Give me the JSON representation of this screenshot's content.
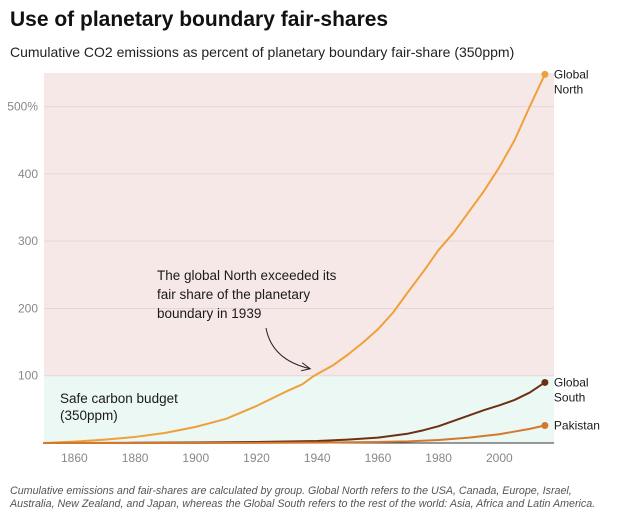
{
  "header": {
    "title": "Use of planetary boundary fair-shares",
    "subtitle": "Cumulative CO2 emissions as percent of planetary boundary fair-share (350ppm)"
  },
  "footnote": "Cumulative emissions and fair-shares are calculated by group. Global North refers to the USA, Canada, Europe, Israel, Australia, New Zealand, and Japan, whereas the Global South refers to the rest of the world: Asia, Africa and Latin America.",
  "chart_data": {
    "type": "line",
    "title": "Use of planetary boundary fair-shares",
    "subtitle": "Cumulative CO2 emissions as percent of planetary boundary fair-share (350ppm)",
    "xlim": [
      1850,
      2018
    ],
    "ylim": [
      0,
      550
    ],
    "x_ticks": [
      1860,
      1880,
      1900,
      1920,
      1940,
      1960,
      1980,
      2000
    ],
    "y_ticks": [
      100,
      200,
      300,
      400,
      500
    ],
    "y_tick_labels": [
      "100",
      "200",
      "300",
      "400",
      "500%"
    ],
    "grid": true,
    "legend": "end-of-line labels",
    "zones": [
      {
        "label": "Safe carbon budget\n(350ppm)",
        "from": 0,
        "to": 100,
        "color": "#ebf8f3"
      },
      {
        "label": "",
        "from": 100,
        "to": 550,
        "color": "#f7e8e8"
      }
    ],
    "series": [
      {
        "name": "Global\nNorth",
        "color": "#f0a03a",
        "x": [
          1850,
          1860,
          1870,
          1880,
          1890,
          1900,
          1910,
          1920,
          1930,
          1935,
          1939,
          1945,
          1950,
          1955,
          1960,
          1965,
          1970,
          1975,
          1980,
          1985,
          1990,
          1995,
          2000,
          2005,
          2010,
          2015
        ],
        "y": [
          0,
          2,
          5,
          9,
          15,
          24,
          36,
          55,
          77,
          87,
          100,
          115,
          131,
          149,
          169,
          194,
          225,
          255,
          287,
          313,
          344,
          375,
          410,
          450,
          500,
          548
        ]
      },
      {
        "name": "Global\nSouth",
        "color": "#6e2f14",
        "x": [
          1850,
          1880,
          1900,
          1920,
          1940,
          1950,
          1960,
          1970,
          1975,
          1980,
          1985,
          1990,
          1995,
          2000,
          2005,
          2010,
          2015
        ],
        "y": [
          0,
          0.3,
          0.8,
          1.5,
          3,
          5,
          8,
          14,
          19,
          25,
          33,
          41,
          49,
          56,
          64,
          75,
          90
        ]
      },
      {
        "name": "Pakistan",
        "color": "#d4782c",
        "x": [
          1850,
          1900,
          1940,
          1960,
          1970,
          1980,
          1990,
          2000,
          2005,
          2010,
          2015
        ],
        "y": [
          0,
          0,
          0.5,
          1.5,
          2.5,
          4.5,
          8,
          13,
          17,
          21,
          26
        ]
      }
    ],
    "annotations": [
      {
        "text": "The global North exceeded its\nfair share of the planetary\nboundary in 1939",
        "x": 1939,
        "y": 100
      }
    ]
  }
}
